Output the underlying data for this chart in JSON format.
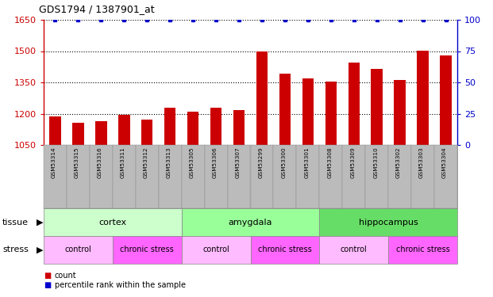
{
  "title": "GDS1794 / 1387901_at",
  "samples": [
    "GSM53314",
    "GSM53315",
    "GSM53316",
    "GSM53311",
    "GSM53312",
    "GSM53313",
    "GSM53305",
    "GSM53306",
    "GSM53307",
    "GSM53299",
    "GSM53300",
    "GSM53301",
    "GSM53308",
    "GSM53309",
    "GSM53310",
    "GSM53302",
    "GSM53303",
    "GSM53304"
  ],
  "counts": [
    1185,
    1158,
    1163,
    1196,
    1172,
    1228,
    1210,
    1228,
    1218,
    1497,
    1390,
    1368,
    1355,
    1445,
    1415,
    1362,
    1500,
    1480
  ],
  "percentile": [
    100,
    100,
    100,
    100,
    100,
    100,
    100,
    100,
    100,
    100,
    100,
    100,
    100,
    100,
    100,
    100,
    100,
    100
  ],
  "bar_color": "#cc0000",
  "dot_color": "#0000cc",
  "ylim_left": [
    1050,
    1650
  ],
  "ylim_right": [
    0,
    100
  ],
  "yticks_left": [
    1050,
    1200,
    1350,
    1500,
    1650
  ],
  "yticks_right": [
    0,
    25,
    50,
    75,
    100
  ],
  "tissue_groups": [
    {
      "label": "cortex",
      "start": 0,
      "end": 6,
      "color": "#ccffcc"
    },
    {
      "label": "amygdala",
      "start": 6,
      "end": 12,
      "color": "#99ff99"
    },
    {
      "label": "hippocampus",
      "start": 12,
      "end": 18,
      "color": "#66dd66"
    }
  ],
  "stress_groups": [
    {
      "label": "control",
      "start": 0,
      "end": 3,
      "color": "#ffbbff"
    },
    {
      "label": "chronic stress",
      "start": 3,
      "end": 6,
      "color": "#ff66ff"
    },
    {
      "label": "control",
      "start": 6,
      "end": 9,
      "color": "#ffbbff"
    },
    {
      "label": "chronic stress",
      "start": 9,
      "end": 12,
      "color": "#ff66ff"
    },
    {
      "label": "control",
      "start": 12,
      "end": 15,
      "color": "#ffbbff"
    },
    {
      "label": "chronic stress",
      "start": 15,
      "end": 18,
      "color": "#ff66ff"
    }
  ],
  "legend_count_label": "count",
  "legend_pct_label": "percentile rank within the sample",
  "tissue_label": "tissue",
  "stress_label": "stress",
  "axis_color_left": "#cc0000",
  "axis_color_right": "#0000cc",
  "grid_color": "#000000",
  "xticklabel_bg": "#bbbbbb"
}
